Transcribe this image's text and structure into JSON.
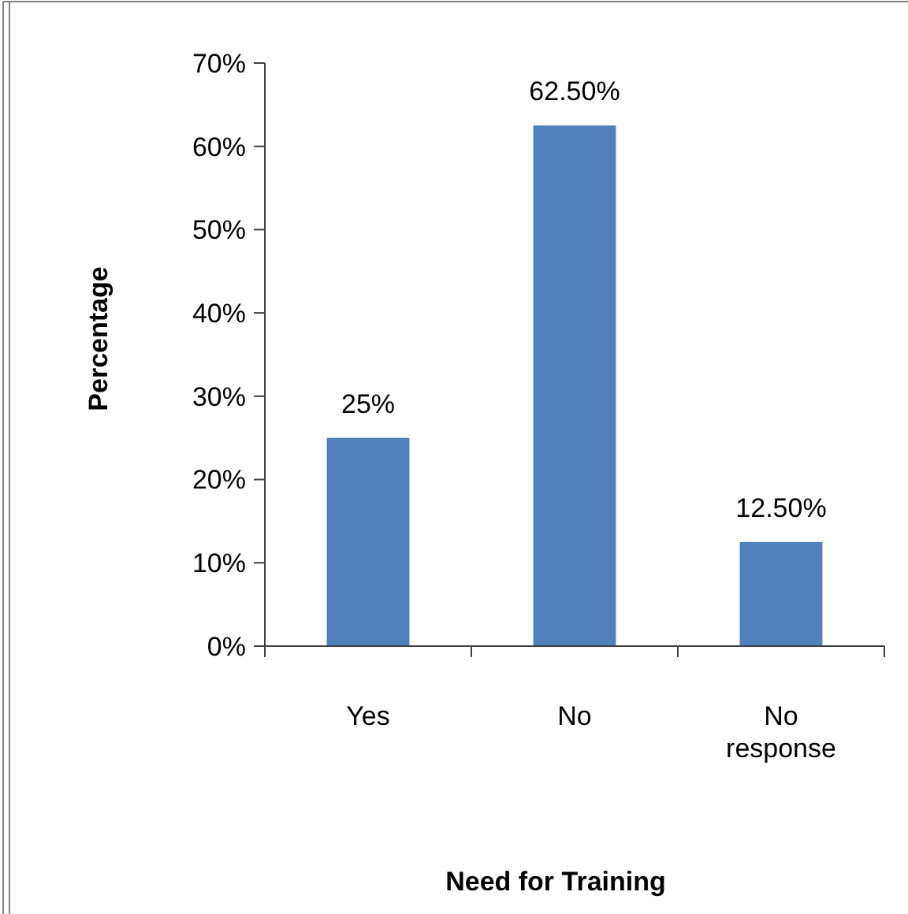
{
  "chart_data": {
    "type": "bar",
    "categories": [
      "Yes",
      "No",
      "No response"
    ],
    "values": [
      25,
      62.5,
      12.5
    ],
    "color": "#4f81bd",
    "value_labels": [
      "25%",
      "62.50%",
      "12.50%"
    ],
    "xlabel": "Need for Training",
    "ylabel": "Percentage",
    "ylim": [
      0,
      70
    ],
    "yticks": [
      {
        "value": 0,
        "label": "0%"
      },
      {
        "value": 10,
        "label": "10%"
      },
      {
        "value": 20,
        "label": "20%"
      },
      {
        "value": 30,
        "label": "30%"
      },
      {
        "value": 40,
        "label": "40%"
      },
      {
        "value": 50,
        "label": "50%"
      },
      {
        "value": 60,
        "label": "60%"
      },
      {
        "value": 70,
        "label": "70%"
      }
    ],
    "grid": false
  }
}
